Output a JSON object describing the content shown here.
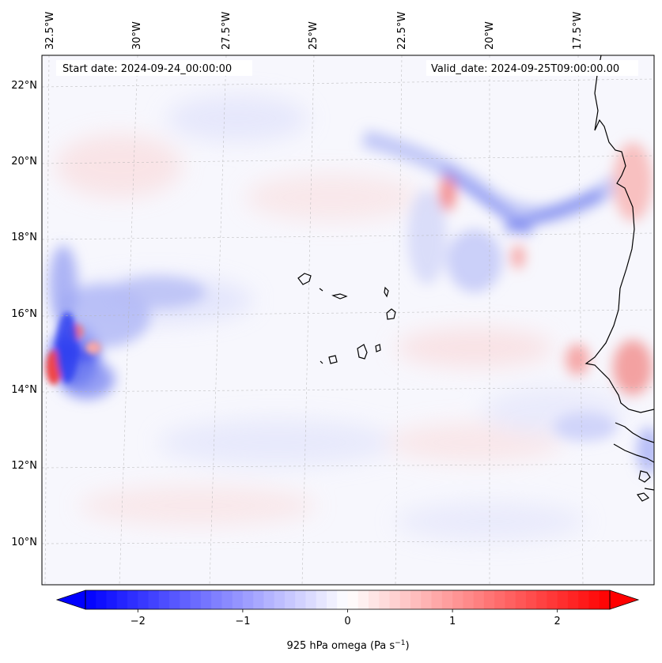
{
  "map": {
    "annotations": {
      "start_date": "Start date: 2024-09-24_00:00:00",
      "valid_date": "Valid_date: 2024-09-25T09:00:00.00"
    },
    "lon_labels": [
      "32.5°W",
      "30°W",
      "27.5°W",
      "25°W",
      "22.5°W",
      "20°W",
      "17.5°W"
    ],
    "lat_labels": [
      "22°N",
      "20°N",
      "18°N",
      "16°N",
      "14°N",
      "12°N",
      "10°N"
    ],
    "gridlines": true,
    "coastline": true
  },
  "colorbar": {
    "label": "925 hPa omega (Pa s",
    "label_exponent": "−1",
    "label_close": ")",
    "ticks": [
      "−2",
      "−1",
      "0",
      "1",
      "2"
    ],
    "tick_values": [
      -2,
      -1,
      0,
      1,
      2
    ],
    "range": [
      -2.5,
      2.5
    ],
    "colormap": "bwr",
    "extend": "both",
    "colors": {
      "negative": "#0000ff",
      "zero": "#ffffff",
      "positive": "#ff0000"
    }
  }
}
